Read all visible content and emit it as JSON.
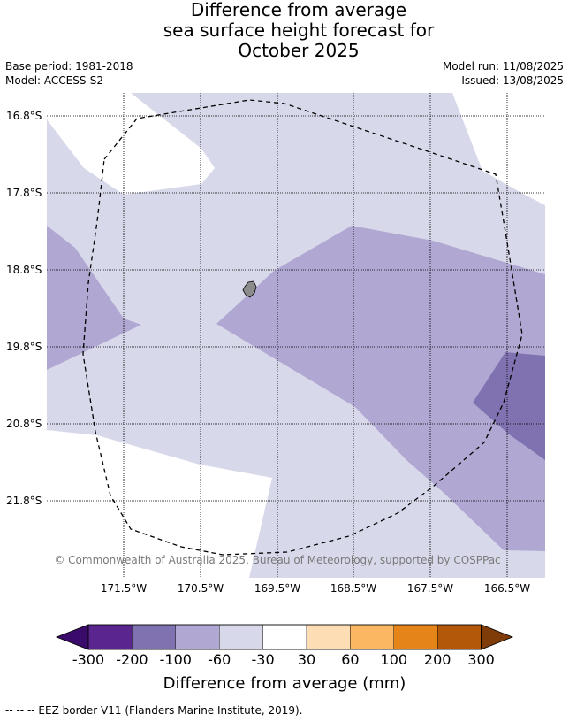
{
  "header": {
    "title_lines": [
      "Difference from average",
      "sea surface height forecast for",
      "October 2025"
    ],
    "base_period": "Base period: 1981-2018",
    "model": "Model: ACCESS-S2",
    "model_run": "Model run: 11/08/2025",
    "issued": "Issued: 13/08/2025"
  },
  "map": {
    "lat_labels": [
      "16.8°S",
      "17.8°S",
      "18.8°S",
      "19.8°S",
      "20.8°S",
      "21.8°S"
    ],
    "lon_labels": [
      "171.5°W",
      "170.5°W",
      "169.5°W",
      "168.5°W",
      "167.5°W",
      "166.5°W"
    ],
    "copyright": "© Commonwealth of Australia 2025, Bureau of Meteorology, supported by COSPPac",
    "colors": {
      "band_-30_0": "#d8d8eb",
      "band_-60_-30": "#b0a8d2",
      "band_-100_-60": "#8072b0",
      "eez_border": "#000000",
      "island": "#8c8c8c"
    }
  },
  "colorbar": {
    "ticks": [
      "-300",
      "-200",
      "-100",
      "-60",
      "-30",
      "30",
      "60",
      "100",
      "200",
      "300"
    ],
    "colors": [
      "#3a0b6b",
      "#5b2590",
      "#8072b0",
      "#b0a8d2",
      "#d8d8eb",
      "#ffffff",
      "#fddeb4",
      "#fbb762",
      "#e48419",
      "#b35809",
      "#7f3b08"
    ],
    "label": "Difference from average (mm)"
  },
  "footnote": "-- -- -- EEZ border V11 (Flanders Marine Institute, 2019)."
}
